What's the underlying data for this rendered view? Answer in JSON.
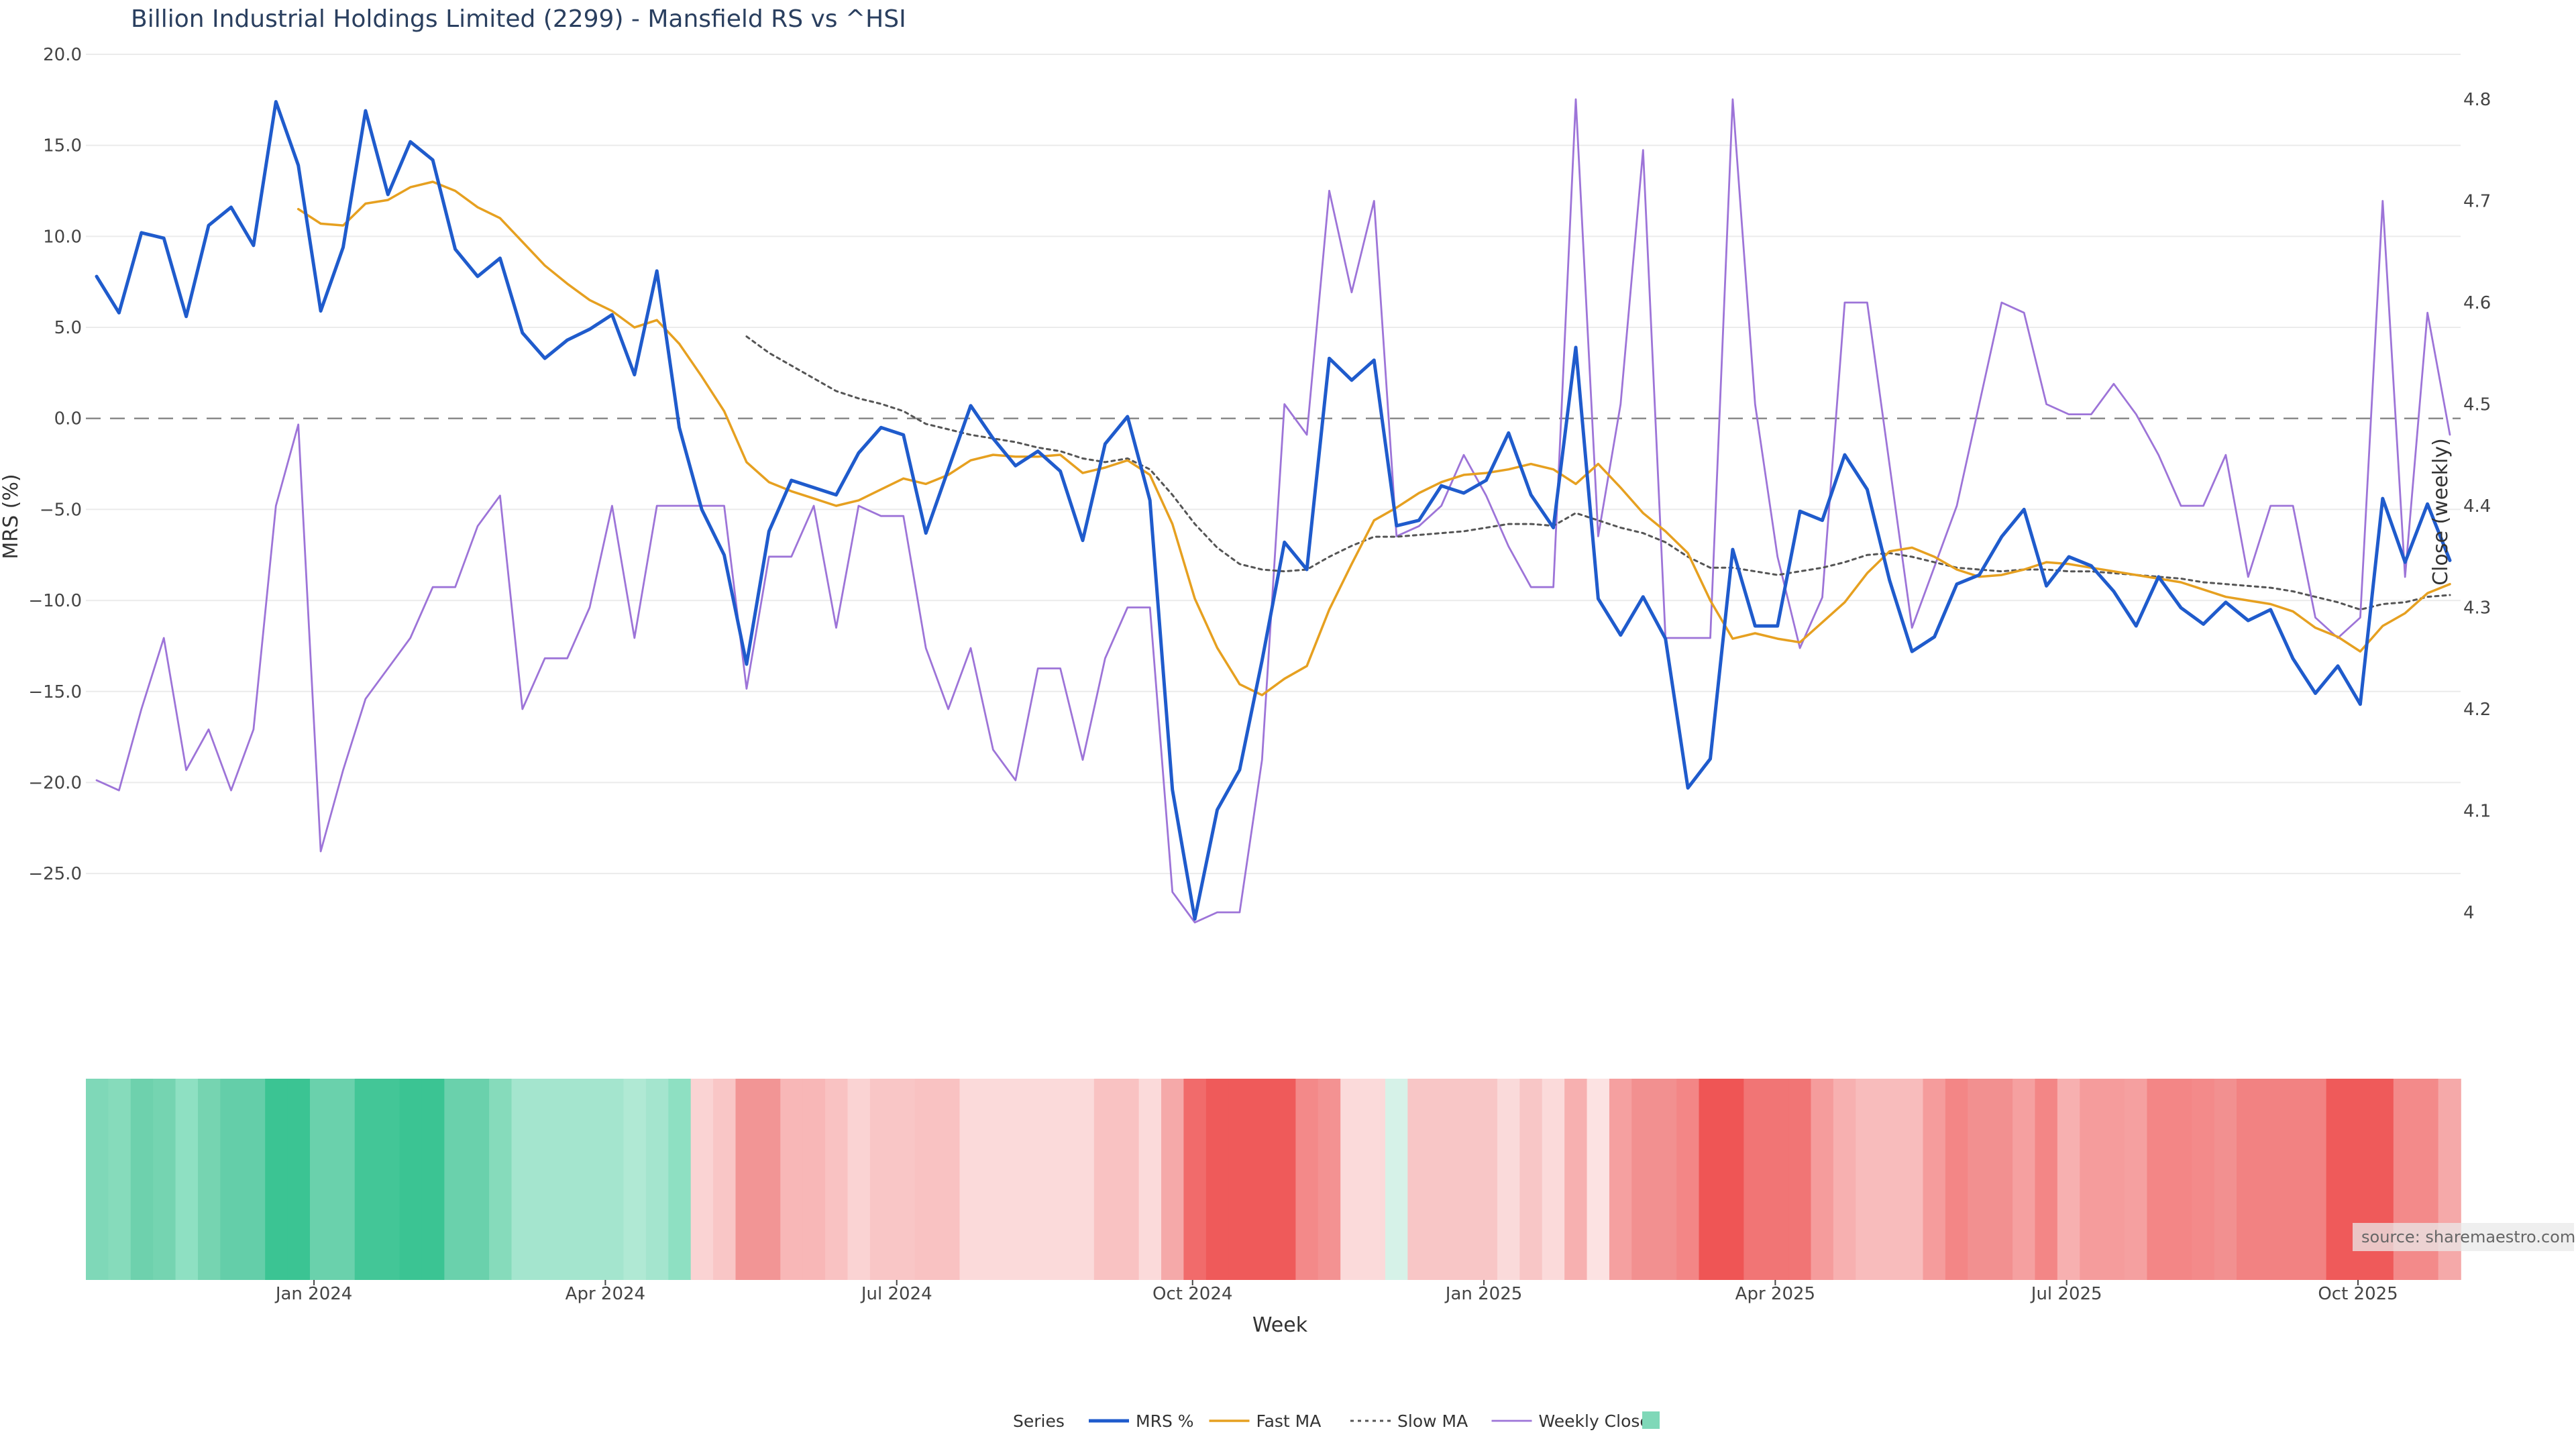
{
  "chart_data": {
    "type": "line",
    "title": "Billion Industrial Holdings Limited (2299) - Mansfield RS vs ^HSI",
    "y_left": {
      "label": "MRS (%)",
      "range": [
        -27.5,
        20
      ],
      "ticks": [
        20.0,
        15.0,
        10.0,
        5.0,
        0.0,
        -5.0,
        -10.0,
        -15.0,
        -20.0,
        -25.0
      ],
      "tick_labels": [
        "20.0",
        "15.0",
        "10.0",
        "5.0",
        "0.0",
        "−5.0",
        "−10.0",
        "−15.0",
        "−20.0",
        "−25.0"
      ]
    },
    "y_right": {
      "label": "Close (weekly)",
      "range": [
        4.0,
        4.8
      ],
      "ticks": [
        4.8,
        4.7,
        4.6,
        4.5,
        4.4,
        4.3,
        4.2,
        4.1,
        4.0
      ],
      "tick_labels": [
        "4.8",
        "4.7",
        "4.6",
        "4.5",
        "4.4",
        "4.3",
        "4.2",
        "4.1",
        "4"
      ]
    },
    "x_axis": {
      "label": "Week",
      "tick_labels": [
        "Jan 2024",
        "Apr 2024",
        "Jul 2024",
        "Oct 2024",
        "Jan 2025",
        "Apr 2025",
        "Jul 2025",
        "Oct 2025"
      ],
      "tick_weeks": [
        9.7,
        22.7,
        35.7,
        48.9,
        61.9,
        74.9,
        87.9,
        100.9
      ],
      "n_weeks": 106
    },
    "zero_line": 0,
    "grid": true,
    "legend_position": "bottom-center",
    "legend_title": "Series",
    "source_text": "source: sharemaestro.com",
    "series": [
      {
        "name": "MRS %",
        "color": "#1f5bcc",
        "axis": "left",
        "values": [
          7.8,
          5.8,
          10.2,
          9.9,
          5.6,
          10.6,
          11.6,
          9.5,
          17.4,
          13.9,
          5.9,
          9.4,
          16.9,
          12.3,
          15.2,
          14.2,
          9.3,
          7.8,
          8.8,
          4.7,
          3.3,
          4.3,
          4.9,
          5.7,
          2.4,
          8.1,
          -0.5,
          -5.0,
          -7.5,
          -13.5,
          -6.2,
          -3.4,
          -3.8,
          -4.2,
          -1.9,
          -0.5,
          -0.9,
          -6.3,
          -2.8,
          0.7,
          -1.1,
          -2.6,
          -1.8,
          -2.9,
          -6.7,
          -1.4,
          0.1,
          -4.5,
          -20.4,
          -27.5,
          -21.5,
          -19.3,
          -13.3,
          -6.8,
          -8.3,
          3.3,
          2.1,
          3.2,
          -5.9,
          -5.6,
          -3.7,
          -4.1,
          -3.4,
          -0.8,
          -4.2,
          -6.0,
          3.9,
          -9.9,
          -11.9,
          -9.8,
          -12.1,
          -20.3,
          -18.7,
          -7.2,
          -11.4,
          -11.4,
          -5.1,
          -5.6,
          -2.0,
          -3.9,
          -8.9,
          -12.8,
          -12.0,
          -9.1,
          -8.6,
          -6.5,
          -5.0,
          -9.2,
          -7.6,
          -8.1,
          -9.5,
          -11.4,
          -8.7,
          -10.4,
          -11.3,
          -10.1,
          -11.1,
          -10.5,
          -13.2,
          -15.1,
          -13.6,
          -15.7,
          -4.4,
          -7.9,
          -4.7,
          -7.8
        ]
      },
      {
        "name": "Fast MA",
        "color": "#e6a020",
        "axis": "left",
        "values": [
          null,
          null,
          null,
          null,
          null,
          null,
          null,
          null,
          null,
          11.5,
          10.7,
          10.6,
          11.8,
          12.0,
          12.7,
          13.0,
          12.5,
          11.6,
          11.0,
          9.7,
          8.4,
          7.4,
          6.5,
          5.9,
          5.0,
          5.4,
          4.1,
          2.3,
          0.4,
          -2.4,
          -3.5,
          -4.0,
          -4.4,
          -4.8,
          -4.5,
          -3.9,
          -3.3,
          -3.6,
          -3.1,
          -2.3,
          -2.0,
          -2.1,
          -2.1,
          -2.0,
          -3.0,
          -2.7,
          -2.3,
          -3.1,
          -5.8,
          -9.9,
          -12.6,
          -14.6,
          -15.2,
          -14.3,
          -13.6,
          -10.5,
          -8.0,
          -5.6,
          -4.9,
          -4.1,
          -3.5,
          -3.1,
          -3.0,
          -2.8,
          -2.5,
          -2.8,
          -3.6,
          -2.5,
          -3.8,
          -5.2,
          -6.2,
          -7.4,
          -10.0,
          -12.1,
          -11.8,
          -12.1,
          -12.3,
          -11.2,
          -10.1,
          -8.5,
          -7.3,
          -7.1,
          -7.6,
          -8.3,
          -8.7,
          -8.6,
          -8.3,
          -7.9,
          -8.0,
          -8.2,
          -8.4,
          -8.6,
          -8.8,
          -9.0,
          -9.4,
          -9.8,
          -10.0,
          -10.2,
          -10.6,
          -11.5,
          -12.0,
          -12.8,
          -11.4,
          -10.7,
          -9.6,
          -9.1
        ]
      },
      {
        "name": "Slow MA",
        "color": "#555555",
        "axis": "left",
        "values": [
          null,
          null,
          null,
          null,
          null,
          null,
          null,
          null,
          null,
          null,
          null,
          null,
          null,
          null,
          null,
          null,
          null,
          null,
          null,
          null,
          null,
          null,
          null,
          null,
          null,
          null,
          null,
          null,
          null,
          4.5,
          3.6,
          2.9,
          2.2,
          1.5,
          1.1,
          0.8,
          0.4,
          -0.3,
          -0.6,
          -0.9,
          -1.1,
          -1.3,
          -1.6,
          -1.8,
          -2.2,
          -2.4,
          -2.2,
          -2.8,
          -4.2,
          -5.8,
          -7.1,
          -8.0,
          -8.3,
          -8.4,
          -8.3,
          -7.6,
          -7.0,
          -6.5,
          -6.5,
          -6.4,
          -6.3,
          -6.2,
          -6.0,
          -5.8,
          -5.8,
          -5.9,
          -5.2,
          -5.6,
          -6.0,
          -6.3,
          -6.8,
          -7.6,
          -8.2,
          -8.2,
          -8.4,
          -8.6,
          -8.4,
          -8.2,
          -7.9,
          -7.5,
          -7.4,
          -7.6,
          -7.9,
          -8.2,
          -8.3,
          -8.4,
          -8.3,
          -8.3,
          -8.4,
          -8.4,
          -8.5,
          -8.6,
          -8.7,
          -8.8,
          -9.0,
          -9.1,
          -9.2,
          -9.3,
          -9.5,
          -9.8,
          -10.1,
          -10.5,
          -10.2,
          -10.1,
          -9.8,
          -9.7
        ]
      },
      {
        "name": "Weekly Close",
        "color": "#9d74d8",
        "axis": "right",
        "values": [
          4.13,
          4.12,
          4.2,
          4.27,
          4.14,
          4.18,
          4.12,
          4.18,
          4.4,
          4.48,
          4.06,
          4.14,
          4.21,
          4.24,
          4.27,
          4.32,
          4.32,
          4.38,
          4.41,
          4.2,
          4.25,
          4.25,
          4.3,
          4.4,
          4.27,
          4.4,
          4.4,
          4.4,
          4.4,
          4.22,
          4.35,
          4.35,
          4.4,
          4.28,
          4.4,
          4.39,
          4.39,
          4.26,
          4.2,
          4.26,
          4.16,
          4.13,
          4.24,
          4.24,
          4.15,
          4.25,
          4.3,
          4.3,
          4.02,
          3.99,
          4.0,
          4.0,
          4.15,
          4.5,
          4.47,
          4.71,
          4.61,
          4.7,
          4.37,
          4.38,
          4.4,
          4.45,
          4.41,
          4.36,
          4.32,
          4.32,
          4.8,
          4.37,
          4.5,
          4.75,
          4.27,
          4.27,
          4.27,
          4.8,
          4.5,
          4.35,
          4.26,
          4.31,
          4.6,
          4.6,
          4.44,
          4.28,
          4.34,
          4.4,
          4.5,
          4.6,
          4.59,
          4.5,
          4.49,
          4.49,
          4.52,
          4.49,
          4.45,
          4.4,
          4.4,
          4.45,
          4.33,
          4.4,
          4.4,
          4.29,
          4.27,
          4.29,
          4.7,
          4.33,
          4.59,
          4.47
        ]
      }
    ],
    "heatmap_band": {
      "series_name": "",
      "legend_swatch_color": "#7fd8b8",
      "colors": [
        "#7fd8b8",
        "#86dbbb",
        "#6ed1ad",
        "#75d4b1",
        "#8ee0c2",
        "#76d4b1",
        "#64cea9",
        "#64cea9",
        "#3bc493",
        "#3bc493",
        "#6ad1ac",
        "#6ad1ac",
        "#43c697",
        "#43c697",
        "#3bc493",
        "#3bc493",
        "#6ad1ac",
        "#6ad1ac",
        "#86dbbb",
        "#a4e5ce",
        "#a4e5ce",
        "#a4e5ce",
        "#a4e5ce",
        "#a4e5ce",
        "#b0e9d4",
        "#a4e5ce",
        "#8ee0c2",
        "#fad3d3",
        "#f9c6c6",
        "#f29595",
        "#f29595",
        "#f8b7b7",
        "#f8b7b7",
        "#f9c2c2",
        "#fad3d3",
        "#f9c6c6",
        "#f9c6c6",
        "#f9c2c2",
        "#f9c2c2",
        "#fbdada",
        "#fbdada",
        "#fbdada",
        "#fbdada",
        "#fbdada",
        "#fbdada",
        "#f9c2c2",
        "#f9c2c2",
        "#fbdada",
        "#f5a9a9",
        "#f16b6b",
        "#ef5a5a",
        "#ef5a5a",
        "#ef5a5a",
        "#ef5a5a",
        "#f38989",
        "#f39292",
        "#fbdada",
        "#fbdada",
        "#d6f2e8",
        "#f8c6c6",
        "#f8c6c6",
        "#f8c6c6",
        "#f8c6c6",
        "#fadada",
        "#f8c6c6",
        "#fbdada",
        "#f7b0b0",
        "#fce2e2",
        "#f5a0a0",
        "#f29090",
        "#f29090",
        "#f38686",
        "#ef5555",
        "#ef5555",
        "#f17575",
        "#f17575",
        "#f17575",
        "#f59c9c",
        "#f7b0b0",
        "#f8bcbc",
        "#f8bcbc",
        "#f8bcbc",
        "#f59c9c",
        "#f38686",
        "#f29090",
        "#f29090",
        "#f5a0a0",
        "#f38686",
        "#f7b0b0",
        "#f59c9c",
        "#f59c9c",
        "#f5a0a0",
        "#f38686",
        "#f38686",
        "#f38a8a",
        "#f29090",
        "#f28282",
        "#f28282",
        "#f28282",
        "#f28282",
        "#ef5a5a",
        "#ef5a5a",
        "#ef5a5a",
        "#f38a8a",
        "#f38a8a",
        "#f5a9a9"
      ]
    }
  }
}
